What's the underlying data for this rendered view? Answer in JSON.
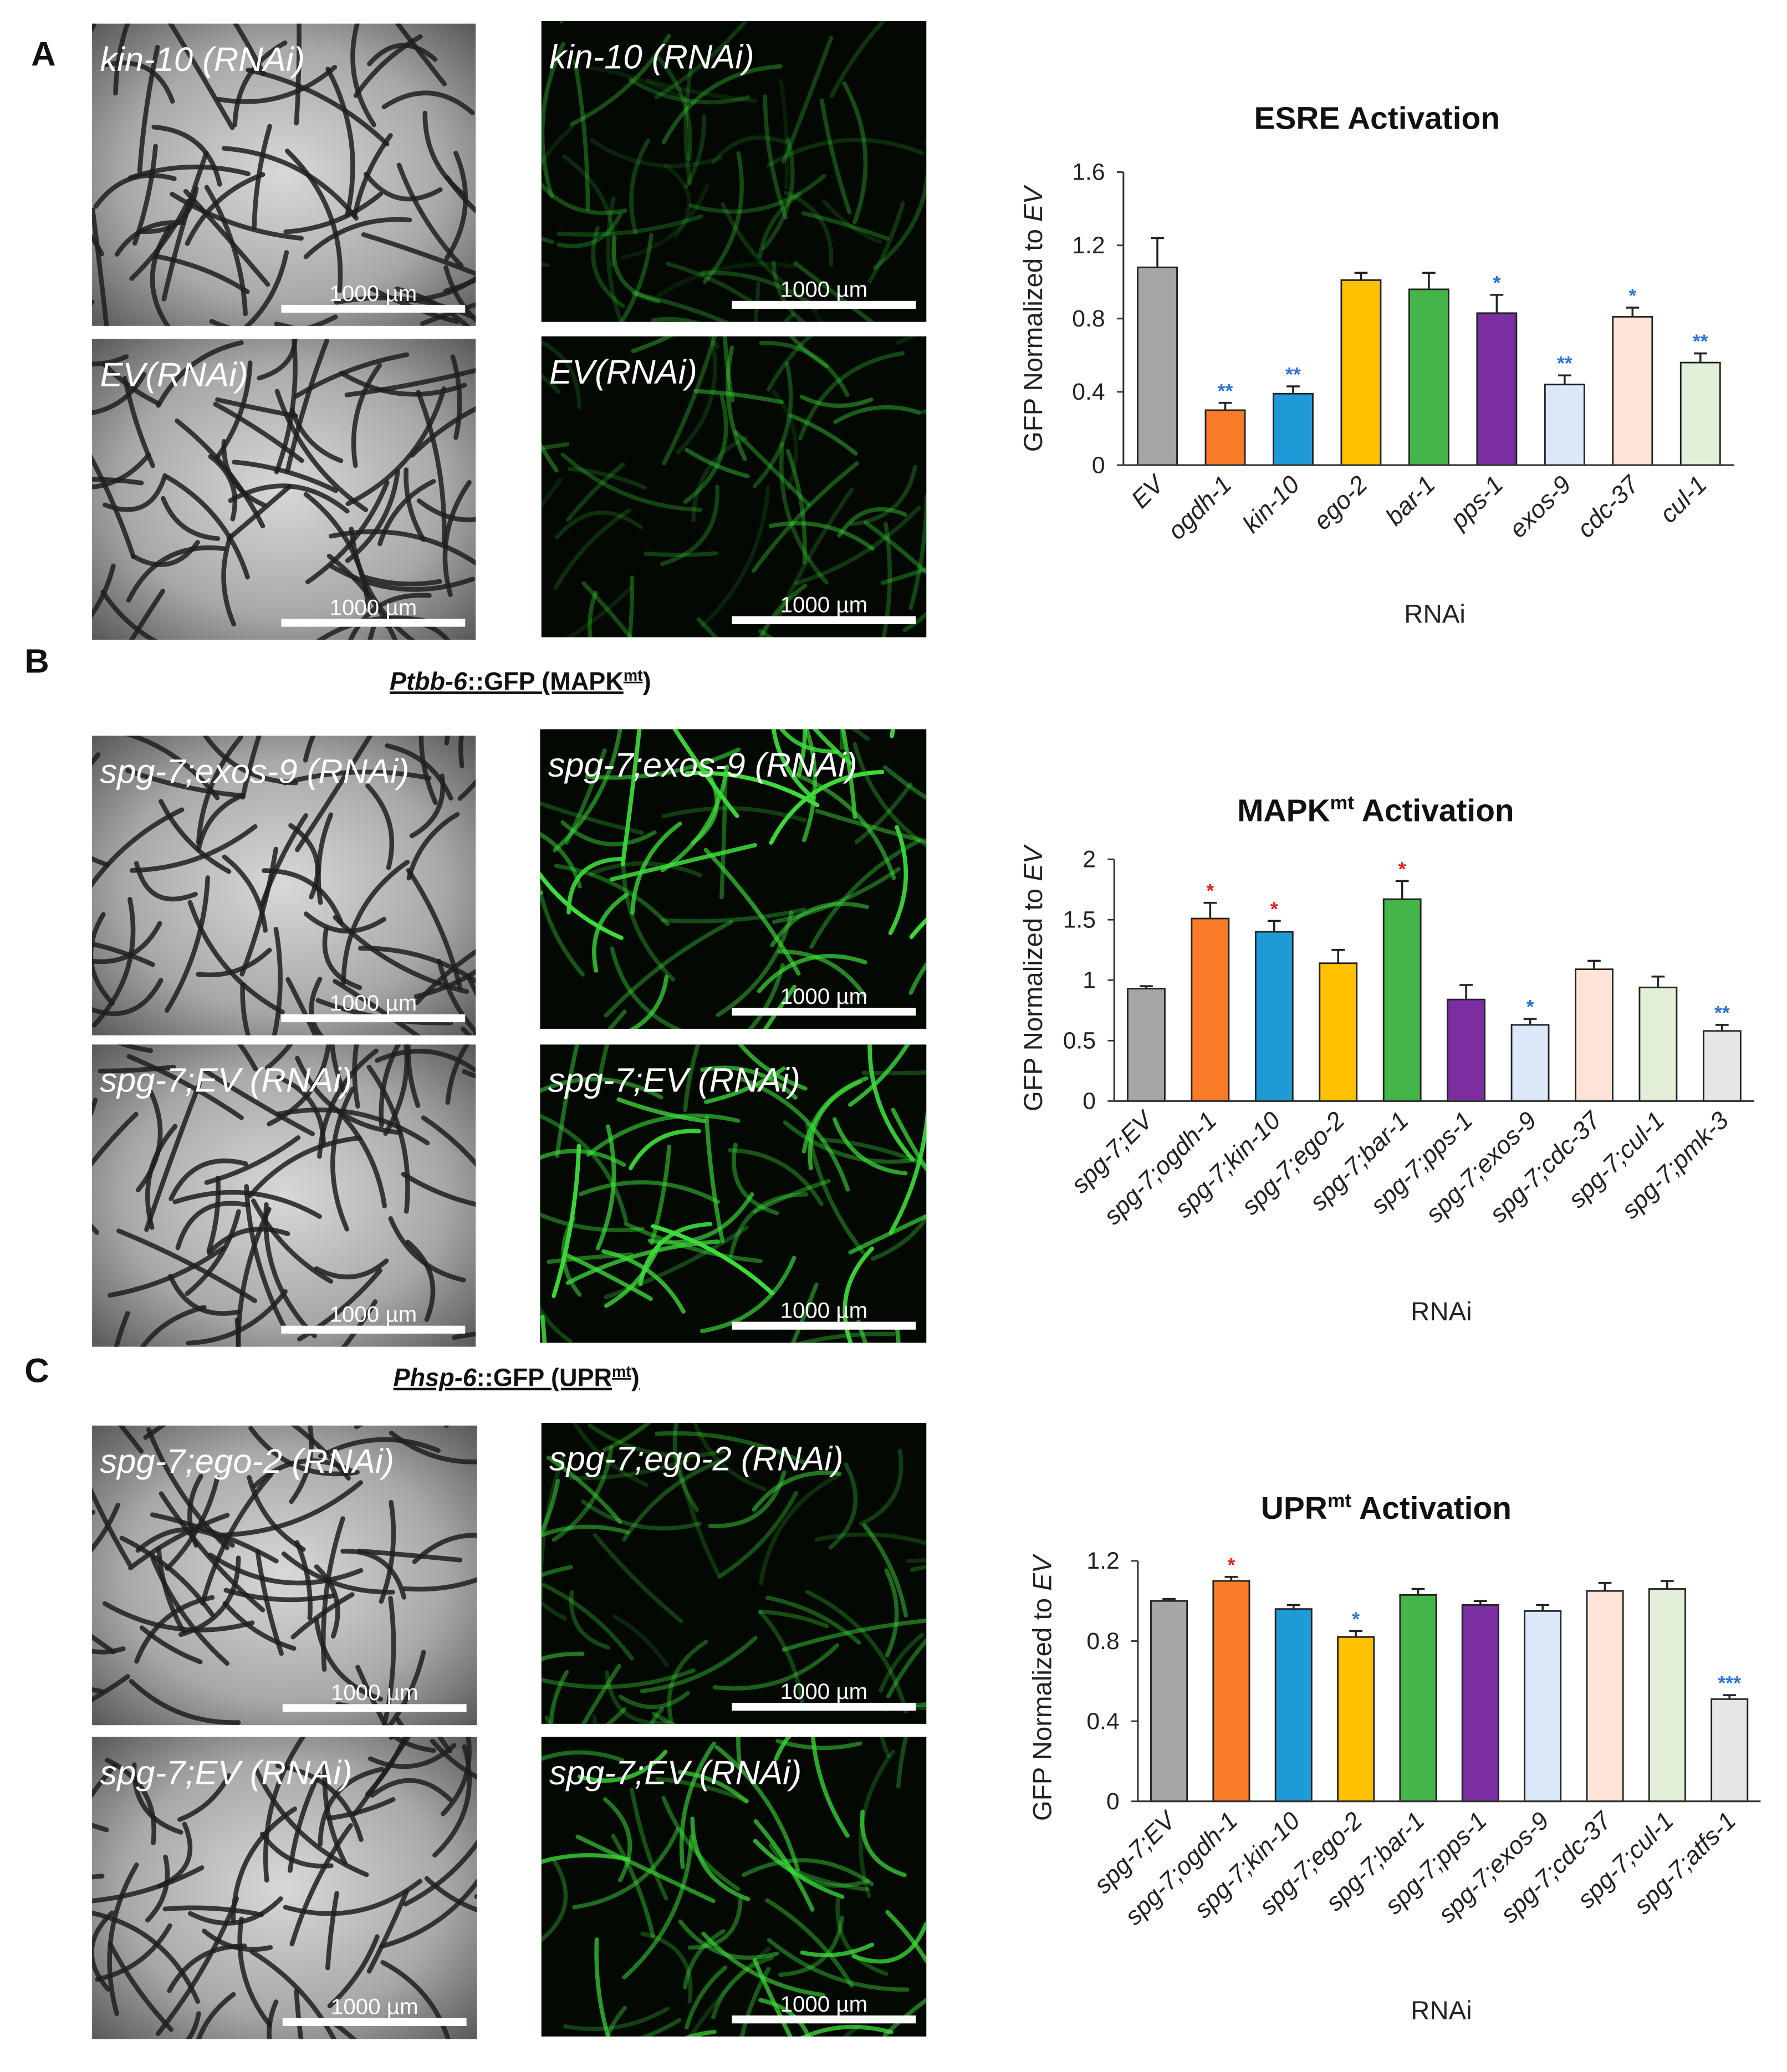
{
  "chart_data": [
    {
      "type": "bar",
      "title": "ESRE Activation",
      "ylabel": {
        "text": "GFP Normalized to ",
        "italic": "EV"
      },
      "xlabel": "RNAi",
      "categories": [
        "EV",
        "ogdh-1",
        "kin-10",
        "ego-2",
        "bar-1",
        "pps-1",
        "exos-9",
        "cdc-37",
        "cul-1"
      ],
      "values": [
        1.08,
        0.3,
        0.39,
        1.01,
        0.96,
        0.83,
        0.44,
        0.81,
        0.56
      ],
      "errors": [
        0.16,
        0.04,
        0.04,
        0.04,
        0.09,
        0.1,
        0.05,
        0.05,
        0.05
      ],
      "colors": [
        "#a6a6a6",
        "#f97b28",
        "#1e9bd7",
        "#ffc000",
        "#44b549",
        "#7b2ea0",
        "#dae8f8",
        "#fde4d6",
        "#e2f0d9"
      ],
      "significance": [
        null,
        "**",
        "**",
        null,
        null,
        "*",
        "**",
        "*",
        "**"
      ],
      "significance_colors": [
        null,
        "#2e75d6",
        "#2e75d6",
        null,
        null,
        "#2e75d6",
        "#2e75d6",
        "#2e75d6",
        "#2e75d6"
      ],
      "ylim": [
        0,
        1.6
      ],
      "yticks": [
        0,
        0.4,
        0.8,
        1.2,
        1.6
      ]
    },
    {
      "type": "bar",
      "title": {
        "main": "MAPK",
        "sup": "mt",
        "rest": " Activation"
      },
      "ylabel": {
        "text": "GFP Normalized to ",
        "italic": "EV"
      },
      "xlabel": "RNAi",
      "categories": [
        "spg-7;EV",
        "spg-7;ogdh-1",
        "spg-7;kin-10",
        "spg-7;ego-2",
        "spg-7;bar-1",
        "spg-7;pps-1",
        "spg-7;exos-9",
        "spg-7;cdc-37",
        "spg-7;cul-1",
        "spg-7;pmk-3"
      ],
      "values": [
        0.93,
        1.51,
        1.4,
        1.14,
        1.67,
        0.84,
        0.63,
        1.09,
        0.94,
        0.58
      ],
      "errors": [
        0.02,
        0.13,
        0.09,
        0.11,
        0.15,
        0.12,
        0.05,
        0.07,
        0.09,
        0.05
      ],
      "colors": [
        "#a6a6a6",
        "#f97b28",
        "#1e9bd7",
        "#ffc000",
        "#44b549",
        "#7b2ea0",
        "#dae8f8",
        "#fde4d6",
        "#e2f0d9",
        "#e7e6e6"
      ],
      "significance": [
        null,
        "*",
        "*",
        null,
        "*",
        null,
        "*",
        null,
        null,
        "**"
      ],
      "significance_colors": [
        null,
        "#e02020",
        "#e02020",
        null,
        "#e02020",
        null,
        "#2e75d6",
        null,
        null,
        "#2e75d6"
      ],
      "ylim": [
        0,
        2
      ],
      "yticks": [
        0,
        0.5,
        1,
        1.5,
        2
      ]
    },
    {
      "type": "bar",
      "title": {
        "main": "UPR",
        "sup": "mt",
        "rest": " Activation"
      },
      "ylabel": {
        "text": "GFP Normalized to ",
        "italic": "EV"
      },
      "xlabel": "RNAi",
      "categories": [
        "spg-7;EV",
        "spg-7;ogdh-1",
        "spg-7;kin-10",
        "spg-7;ego-2",
        "spg-7;bar-1",
        "spg-7;pps-1",
        "spg-7;exos-9",
        "spg-7;cdc-37",
        "spg-7;cul-1",
        "spg-7;atfs-1"
      ],
      "values": [
        1.0,
        1.1,
        0.96,
        0.82,
        1.03,
        0.98,
        0.95,
        1.05,
        1.06,
        0.51
      ],
      "errors": [
        0.01,
        0.02,
        0.02,
        0.03,
        0.03,
        0.02,
        0.03,
        0.04,
        0.04,
        0.02
      ],
      "colors": [
        "#a6a6a6",
        "#f97b28",
        "#1e9bd7",
        "#ffc000",
        "#44b549",
        "#7b2ea0",
        "#dae8f8",
        "#fde4d6",
        "#e2f0d9",
        "#e7e6e6"
      ],
      "significance": [
        null,
        "*",
        null,
        "*",
        null,
        null,
        null,
        null,
        null,
        "***"
      ],
      "significance_colors": [
        null,
        "#e02020",
        null,
        "#2e75d6",
        null,
        null,
        null,
        null,
        null,
        "#2e75d6"
      ],
      "ylim": [
        0,
        1.2
      ],
      "yticks": [
        0,
        0.4,
        0.8,
        1.2
      ]
    }
  ],
  "panels": [
    {
      "label": "A",
      "images": [
        {
          "caption": "kin-10 (RNAi)",
          "scale_bar": "1000 µm"
        },
        {
          "caption": "kin-10 (RNAi)",
          "scale_bar": "1000 µm"
        },
        {
          "caption": "EV(RNAi)",
          "scale_bar": "1000 µm"
        },
        {
          "caption": "EV(RNAi)",
          "scale_bar": "1000 µm"
        }
      ]
    },
    {
      "label": "B",
      "heading": {
        "gene": "Ptbb-6",
        "text": "::GFP (MAPK",
        "sup": "mt",
        "close": ")"
      },
      "images": [
        {
          "caption": "spg-7;exos-9 (RNAi)",
          "scale_bar": "1000 µm"
        },
        {
          "caption": "spg-7;exos-9 (RNAi)",
          "scale_bar": "1000 µm"
        },
        {
          "caption": "spg-7;EV (RNAi)",
          "scale_bar": "1000 µm"
        },
        {
          "caption": "spg-7;EV (RNAi)",
          "scale_bar": "1000 µm"
        }
      ]
    },
    {
      "label": "C",
      "heading": {
        "gene": "Phsp-6",
        "text": "::GFP (UPR",
        "sup": "mt",
        "close": ")"
      },
      "images": [
        {
          "caption": "spg-7;ego-2 (RNAi)",
          "scale_bar": "1000 µm"
        },
        {
          "caption": "spg-7;ego-2 (RNAi)",
          "scale_bar": "1000 µm"
        },
        {
          "caption": "spg-7;EV (RNAi)",
          "scale_bar": "1000 µm"
        },
        {
          "caption": "spg-7;EV (RNAi)",
          "scale_bar": "1000 µm"
        }
      ]
    }
  ]
}
